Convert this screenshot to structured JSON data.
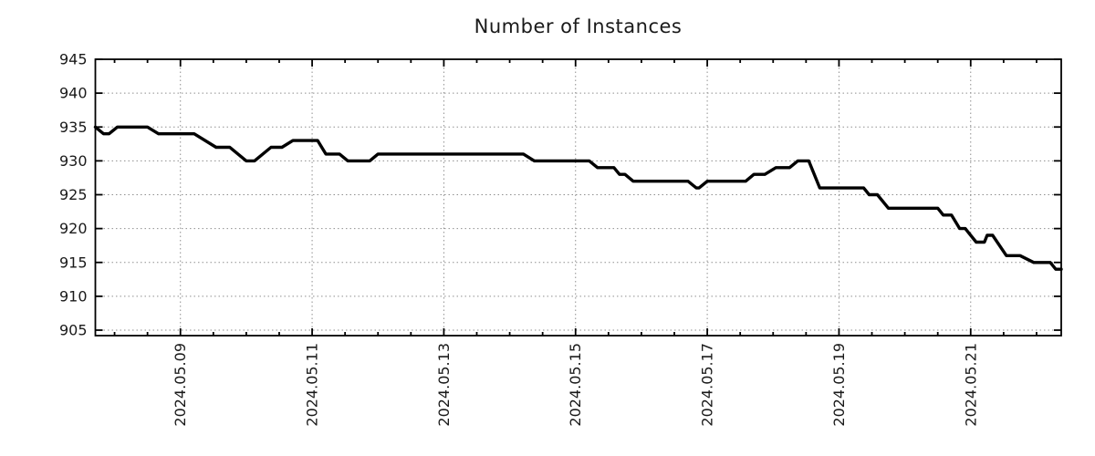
{
  "chart_data": {
    "type": "line",
    "title": "Number of Instances",
    "series_name": "Number of Instances",
    "line_color": "#000000",
    "grid_color": "#8f8f8f",
    "axis_color": "#000000",
    "text_color": "#1a1a1a",
    "grid": "dotted",
    "legend": "none",
    "y_min_border": 904.2,
    "y_max": 945,
    "y_ticks": [
      945,
      940,
      935,
      930,
      925,
      920,
      915,
      910,
      905
    ],
    "x_min": "2024-05-07 17:00",
    "x_max": "2024-05-22 09:00",
    "x_ticks": [
      {
        "label": "2024.05.09",
        "time": "2024-05-09 00:00"
      },
      {
        "label": "2024.05.11",
        "time": "2024-05-11 00:00"
      },
      {
        "label": "2024.05.13",
        "time": "2024-05-13 00:00"
      },
      {
        "label": "2024.05.15",
        "time": "2024-05-15 00:00"
      },
      {
        "label": "2024.05.17",
        "time": "2024-05-17 00:00"
      },
      {
        "label": "2024.05.19",
        "time": "2024-05-19 00:00"
      },
      {
        "label": "2024.05.21",
        "time": "2024-05-21 00:00"
      }
    ],
    "minor_tick_hours": 12,
    "points": [
      [
        "2024-05-07 17:00",
        935
      ],
      [
        "2024-05-07 20:00",
        934
      ],
      [
        "2024-05-07 22:00",
        934
      ],
      [
        "2024-05-08 01:00",
        935
      ],
      [
        "2024-05-08 12:00",
        935
      ],
      [
        "2024-05-08 16:00",
        934
      ],
      [
        "2024-05-09 05:00",
        934
      ],
      [
        "2024-05-09 13:00",
        932
      ],
      [
        "2024-05-09 18:00",
        932
      ],
      [
        "2024-05-10 00:00",
        930
      ],
      [
        "2024-05-10 03:00",
        930
      ],
      [
        "2024-05-10 09:00",
        932
      ],
      [
        "2024-05-10 13:00",
        932
      ],
      [
        "2024-05-10 17:00",
        933
      ],
      [
        "2024-05-11 02:00",
        933
      ],
      [
        "2024-05-11 05:00",
        931
      ],
      [
        "2024-05-11 10:00",
        931
      ],
      [
        "2024-05-11 13:00",
        930
      ],
      [
        "2024-05-11 21:00",
        930
      ],
      [
        "2024-05-12 00:00",
        931
      ],
      [
        "2024-05-14 05:00",
        931
      ],
      [
        "2024-05-14 09:00",
        930
      ],
      [
        "2024-05-15 05:00",
        930
      ],
      [
        "2024-05-15 08:00",
        929
      ],
      [
        "2024-05-15 14:00",
        929
      ],
      [
        "2024-05-15 16:00",
        928
      ],
      [
        "2024-05-15 18:00",
        928
      ],
      [
        "2024-05-15 21:00",
        927
      ],
      [
        "2024-05-16 17:00",
        927
      ],
      [
        "2024-05-16 20:00",
        926
      ],
      [
        "2024-05-16 21:00",
        926
      ],
      [
        "2024-05-17 00:00",
        927
      ],
      [
        "2024-05-17 14:00",
        927
      ],
      [
        "2024-05-17 17:00",
        928
      ],
      [
        "2024-05-17 21:00",
        928
      ],
      [
        "2024-05-18 01:00",
        929
      ],
      [
        "2024-05-18 06:00",
        929
      ],
      [
        "2024-05-18 09:00",
        930
      ],
      [
        "2024-05-18 13:00",
        930
      ],
      [
        "2024-05-18 17:00",
        926
      ],
      [
        "2024-05-19 09:00",
        926
      ],
      [
        "2024-05-19 11:00",
        925
      ],
      [
        "2024-05-19 14:00",
        925
      ],
      [
        "2024-05-19 18:00",
        923
      ],
      [
        "2024-05-20 12:00",
        923
      ],
      [
        "2024-05-20 14:00",
        922
      ],
      [
        "2024-05-20 17:00",
        922
      ],
      [
        "2024-05-20 20:00",
        920
      ],
      [
        "2024-05-20 22:00",
        920
      ],
      [
        "2024-05-21 02:00",
        918
      ],
      [
        "2024-05-21 05:00",
        918
      ],
      [
        "2024-05-21 06:00",
        919
      ],
      [
        "2024-05-21 08:00",
        919
      ],
      [
        "2024-05-21 13:00",
        916
      ],
      [
        "2024-05-21 18:00",
        916
      ],
      [
        "2024-05-21 23:00",
        915
      ],
      [
        "2024-05-22 05:00",
        915
      ],
      [
        "2024-05-22 07:00",
        914
      ],
      [
        "2024-05-22 09:00",
        914
      ]
    ]
  }
}
